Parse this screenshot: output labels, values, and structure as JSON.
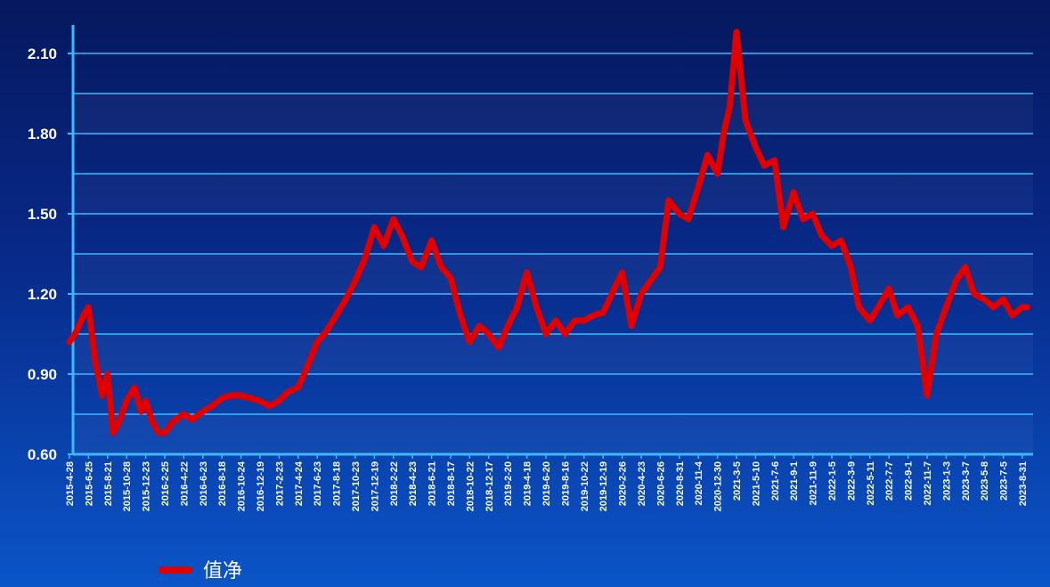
{
  "chart_data": {
    "type": "line",
    "title": "",
    "xlabel": "",
    "ylabel": "",
    "ylim": [
      0.6,
      2.25
    ],
    "yticks": [
      0.6,
      0.9,
      1.2,
      1.5,
      1.8,
      2.1
    ],
    "ytick_labels": [
      "0.60",
      "0.90",
      "1.20",
      "1.50",
      "1.80",
      "2.10"
    ],
    "grid": true,
    "legend": "bottom-left",
    "xtick_labels": [
      "2015-4-28",
      "2015-6-25",
      "2015-8-21",
      "2015-10-28",
      "2015-12-23",
      "2016-2-25",
      "2016-4-22",
      "2016-6-23",
      "2016-8-18",
      "2016-10-24",
      "2016-12-19",
      "2017-2-23",
      "2017-4-24",
      "2017-6-23",
      "2017-8-18",
      "2017-10-23",
      "2017-12-19",
      "2018-2-22",
      "2018-4-23",
      "2018-6-21",
      "2018-8-17",
      "2018-10-22",
      "2018-12-17",
      "2019-2-20",
      "2019-4-18",
      "2019-6-20",
      "2019-8-16",
      "2019-10-22",
      "2019-12-19",
      "2020-2-26",
      "2020-4-23",
      "2020-6-26",
      "2020-8-31",
      "2020-11-4",
      "2020-12-30",
      "2021-3-5",
      "2021-5-10",
      "2021-7-6",
      "2021-9-1",
      "2021-11-9",
      "2022-1-5",
      "2022-3-9",
      "2022-5-11",
      "2022-7-7",
      "2022-9-1",
      "2022-11-7",
      "2023-1-3",
      "2023-3-7",
      "2023-5-8",
      "2023-7-5",
      "2023-8-31"
    ],
    "series": [
      {
        "name": "值净",
        "color": "#e00000",
        "x": [
          "2015-4-28",
          "2015-5-15",
          "2015-6-10",
          "2015-6-25",
          "2015-7-15",
          "2015-8-5",
          "2015-8-21",
          "2015-9-10",
          "2015-10-1",
          "2015-10-28",
          "2015-11-20",
          "2015-12-10",
          "2015-12-23",
          "2016-1-15",
          "2016-2-5",
          "2016-2-25",
          "2016-3-20",
          "2016-4-22",
          "2016-5-20",
          "2016-6-23",
          "2016-7-20",
          "2016-8-18",
          "2016-9-20",
          "2016-10-24",
          "2016-11-20",
          "2016-12-19",
          "2017-1-20",
          "2017-2-23",
          "2017-3-20",
          "2017-4-24",
          "2017-5-20",
          "2017-6-23",
          "2017-7-20",
          "2017-8-18",
          "2017-9-20",
          "2017-10-23",
          "2017-11-20",
          "2017-12-19",
          "2018-1-20",
          "2018-2-22",
          "2018-3-20",
          "2018-4-23",
          "2018-5-20",
          "2018-6-21",
          "2018-7-20",
          "2018-8-17",
          "2018-9-20",
          "2018-10-22",
          "2018-11-20",
          "2018-12-17",
          "2019-1-20",
          "2019-2-20",
          "2019-3-20",
          "2019-4-18",
          "2019-5-20",
          "2019-6-20",
          "2019-7-20",
          "2019-8-16",
          "2019-9-20",
          "2019-10-22",
          "2019-11-20",
          "2019-12-19",
          "2020-1-20",
          "2020-2-26",
          "2020-3-25",
          "2020-4-23",
          "2020-5-25",
          "2020-6-26",
          "2020-7-25",
          "2020-8-31",
          "2020-10-1",
          "2020-11-4",
          "2020-12-1",
          "2020-12-30",
          "2021-1-20",
          "2021-2-10",
          "2021-3-5",
          "2021-4-5",
          "2021-5-10",
          "2021-6-5",
          "2021-7-6",
          "2021-8-1",
          "2021-9-1",
          "2021-10-5",
          "2021-11-9",
          "2021-12-5",
          "2022-1-5",
          "2022-2-5",
          "2022-3-9",
          "2022-4-5",
          "2022-5-11",
          "2022-6-5",
          "2022-7-7",
          "2022-8-1",
          "2022-9-1",
          "2022-10-5",
          "2022-11-7",
          "2022-12-5",
          "2023-1-3",
          "2023-2-5",
          "2023-3-7",
          "2023-4-5",
          "2023-5-8",
          "2023-6-5",
          "2023-7-5",
          "2023-8-1",
          "2023-8-31",
          "2023-9-15"
        ],
        "y": [
          1.02,
          1.05,
          1.12,
          1.15,
          0.95,
          0.82,
          0.9,
          0.68,
          0.72,
          0.8,
          0.85,
          0.76,
          0.8,
          0.72,
          0.68,
          0.68,
          0.72,
          0.75,
          0.73,
          0.76,
          0.78,
          0.81,
          0.82,
          0.82,
          0.81,
          0.8,
          0.78,
          0.8,
          0.83,
          0.85,
          0.92,
          1.02,
          1.06,
          1.12,
          1.18,
          1.25,
          1.33,
          1.45,
          1.38,
          1.48,
          1.42,
          1.32,
          1.3,
          1.4,
          1.3,
          1.26,
          1.12,
          1.02,
          1.08,
          1.05,
          1.0,
          1.08,
          1.15,
          1.28,
          1.15,
          1.05,
          1.1,
          1.05,
          1.1,
          1.1,
          1.12,
          1.13,
          1.2,
          1.28,
          1.08,
          1.2,
          1.25,
          1.3,
          1.55,
          1.5,
          1.48,
          1.6,
          1.72,
          1.65,
          1.8,
          1.9,
          2.18,
          1.85,
          1.75,
          1.68,
          1.7,
          1.45,
          1.58,
          1.48,
          1.5,
          1.42,
          1.38,
          1.4,
          1.3,
          1.15,
          1.1,
          1.15,
          1.22,
          1.12,
          1.15,
          1.08,
          0.82,
          1.05,
          1.15,
          1.25,
          1.3,
          1.2,
          1.18,
          1.15,
          1.18,
          1.12,
          1.15,
          1.15
        ]
      }
    ]
  }
}
